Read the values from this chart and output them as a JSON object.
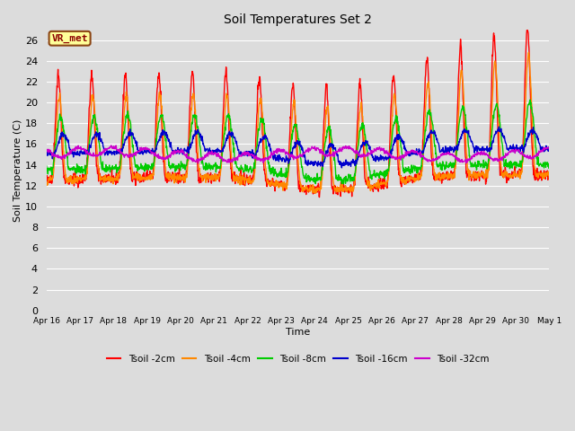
{
  "title": "Soil Temperatures Set 2",
  "xlabel": "Time",
  "ylabel": "Soil Temperature (C)",
  "ylim": [
    0,
    27
  ],
  "yticks": [
    0,
    2,
    4,
    6,
    8,
    10,
    12,
    14,
    16,
    18,
    20,
    22,
    24,
    26
  ],
  "background_color": "#dcdcdc",
  "plot_bg_color": "#dcdcdc",
  "grid_color": "#ffffff",
  "annotation_text": "VR_met",
  "annotation_box_color": "#ffff99",
  "annotation_border_color": "#8B4513",
  "annotation_text_color": "#8B0000",
  "series": {
    "Tsoil -2cm": {
      "color": "#ff0000",
      "lw": 1.0
    },
    "Tsoil -4cm": {
      "color": "#ff8800",
      "lw": 1.0
    },
    "Tsoil -8cm": {
      "color": "#00cc00",
      "lw": 1.0
    },
    "Tsoil -16cm": {
      "color": "#0000cc",
      "lw": 1.0
    },
    "Tsoil -32cm": {
      "color": "#cc00cc",
      "lw": 1.0
    }
  },
  "x_tick_labels": [
    "Apr 16",
    "Apr 17",
    "Apr 18",
    "Apr 19",
    "Apr 20",
    "Apr 21",
    "Apr 22",
    "Apr 23",
    "Apr 24",
    "Apr 25",
    "Apr 26",
    "Apr 27",
    "Apr 28",
    "Apr 29",
    "Apr 30",
    "May 1"
  ]
}
